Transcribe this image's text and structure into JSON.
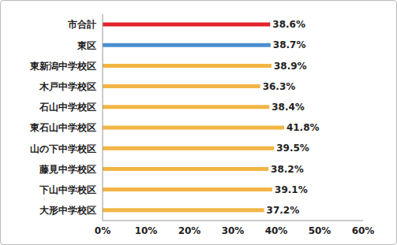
{
  "chart_data": {
    "type": "bar",
    "orientation": "horizontal",
    "categories": [
      "市合計",
      "東区",
      "東新潟中学校区",
      "木戸中学校区",
      "石山中学校区",
      "東石山中学校区",
      "山の下中学校区",
      "藤見中学校区",
      "下山中学校区",
      "大形中学校区"
    ],
    "values": [
      38.6,
      38.7,
      38.9,
      36.3,
      38.4,
      41.8,
      39.5,
      38.2,
      39.1,
      37.2
    ],
    "value_labels": [
      "38.6%",
      "38.7%",
      "38.9%",
      "36.3%",
      "38.4%",
      "41.8%",
      "39.5%",
      "38.2%",
      "39.1%",
      "37.2%"
    ],
    "colors": [
      "#e3222b",
      "#4a8fd1",
      "#f2b544",
      "#f2b544",
      "#f2b544",
      "#f2b544",
      "#f2b544",
      "#f2b544",
      "#f2b544",
      "#f2b544"
    ],
    "xlim": [
      0,
      60
    ],
    "xticks": [
      {
        "value": 0,
        "label": "0%"
      },
      {
        "value": 10,
        "label": "10%"
      },
      {
        "value": 20,
        "label": "20%"
      },
      {
        "value": 30,
        "label": "30%"
      },
      {
        "value": 40,
        "label": "40%"
      },
      {
        "value": 50,
        "label": "50%"
      },
      {
        "value": 60,
        "label": "60%"
      }
    ],
    "data_labels": true,
    "grid": false
  }
}
